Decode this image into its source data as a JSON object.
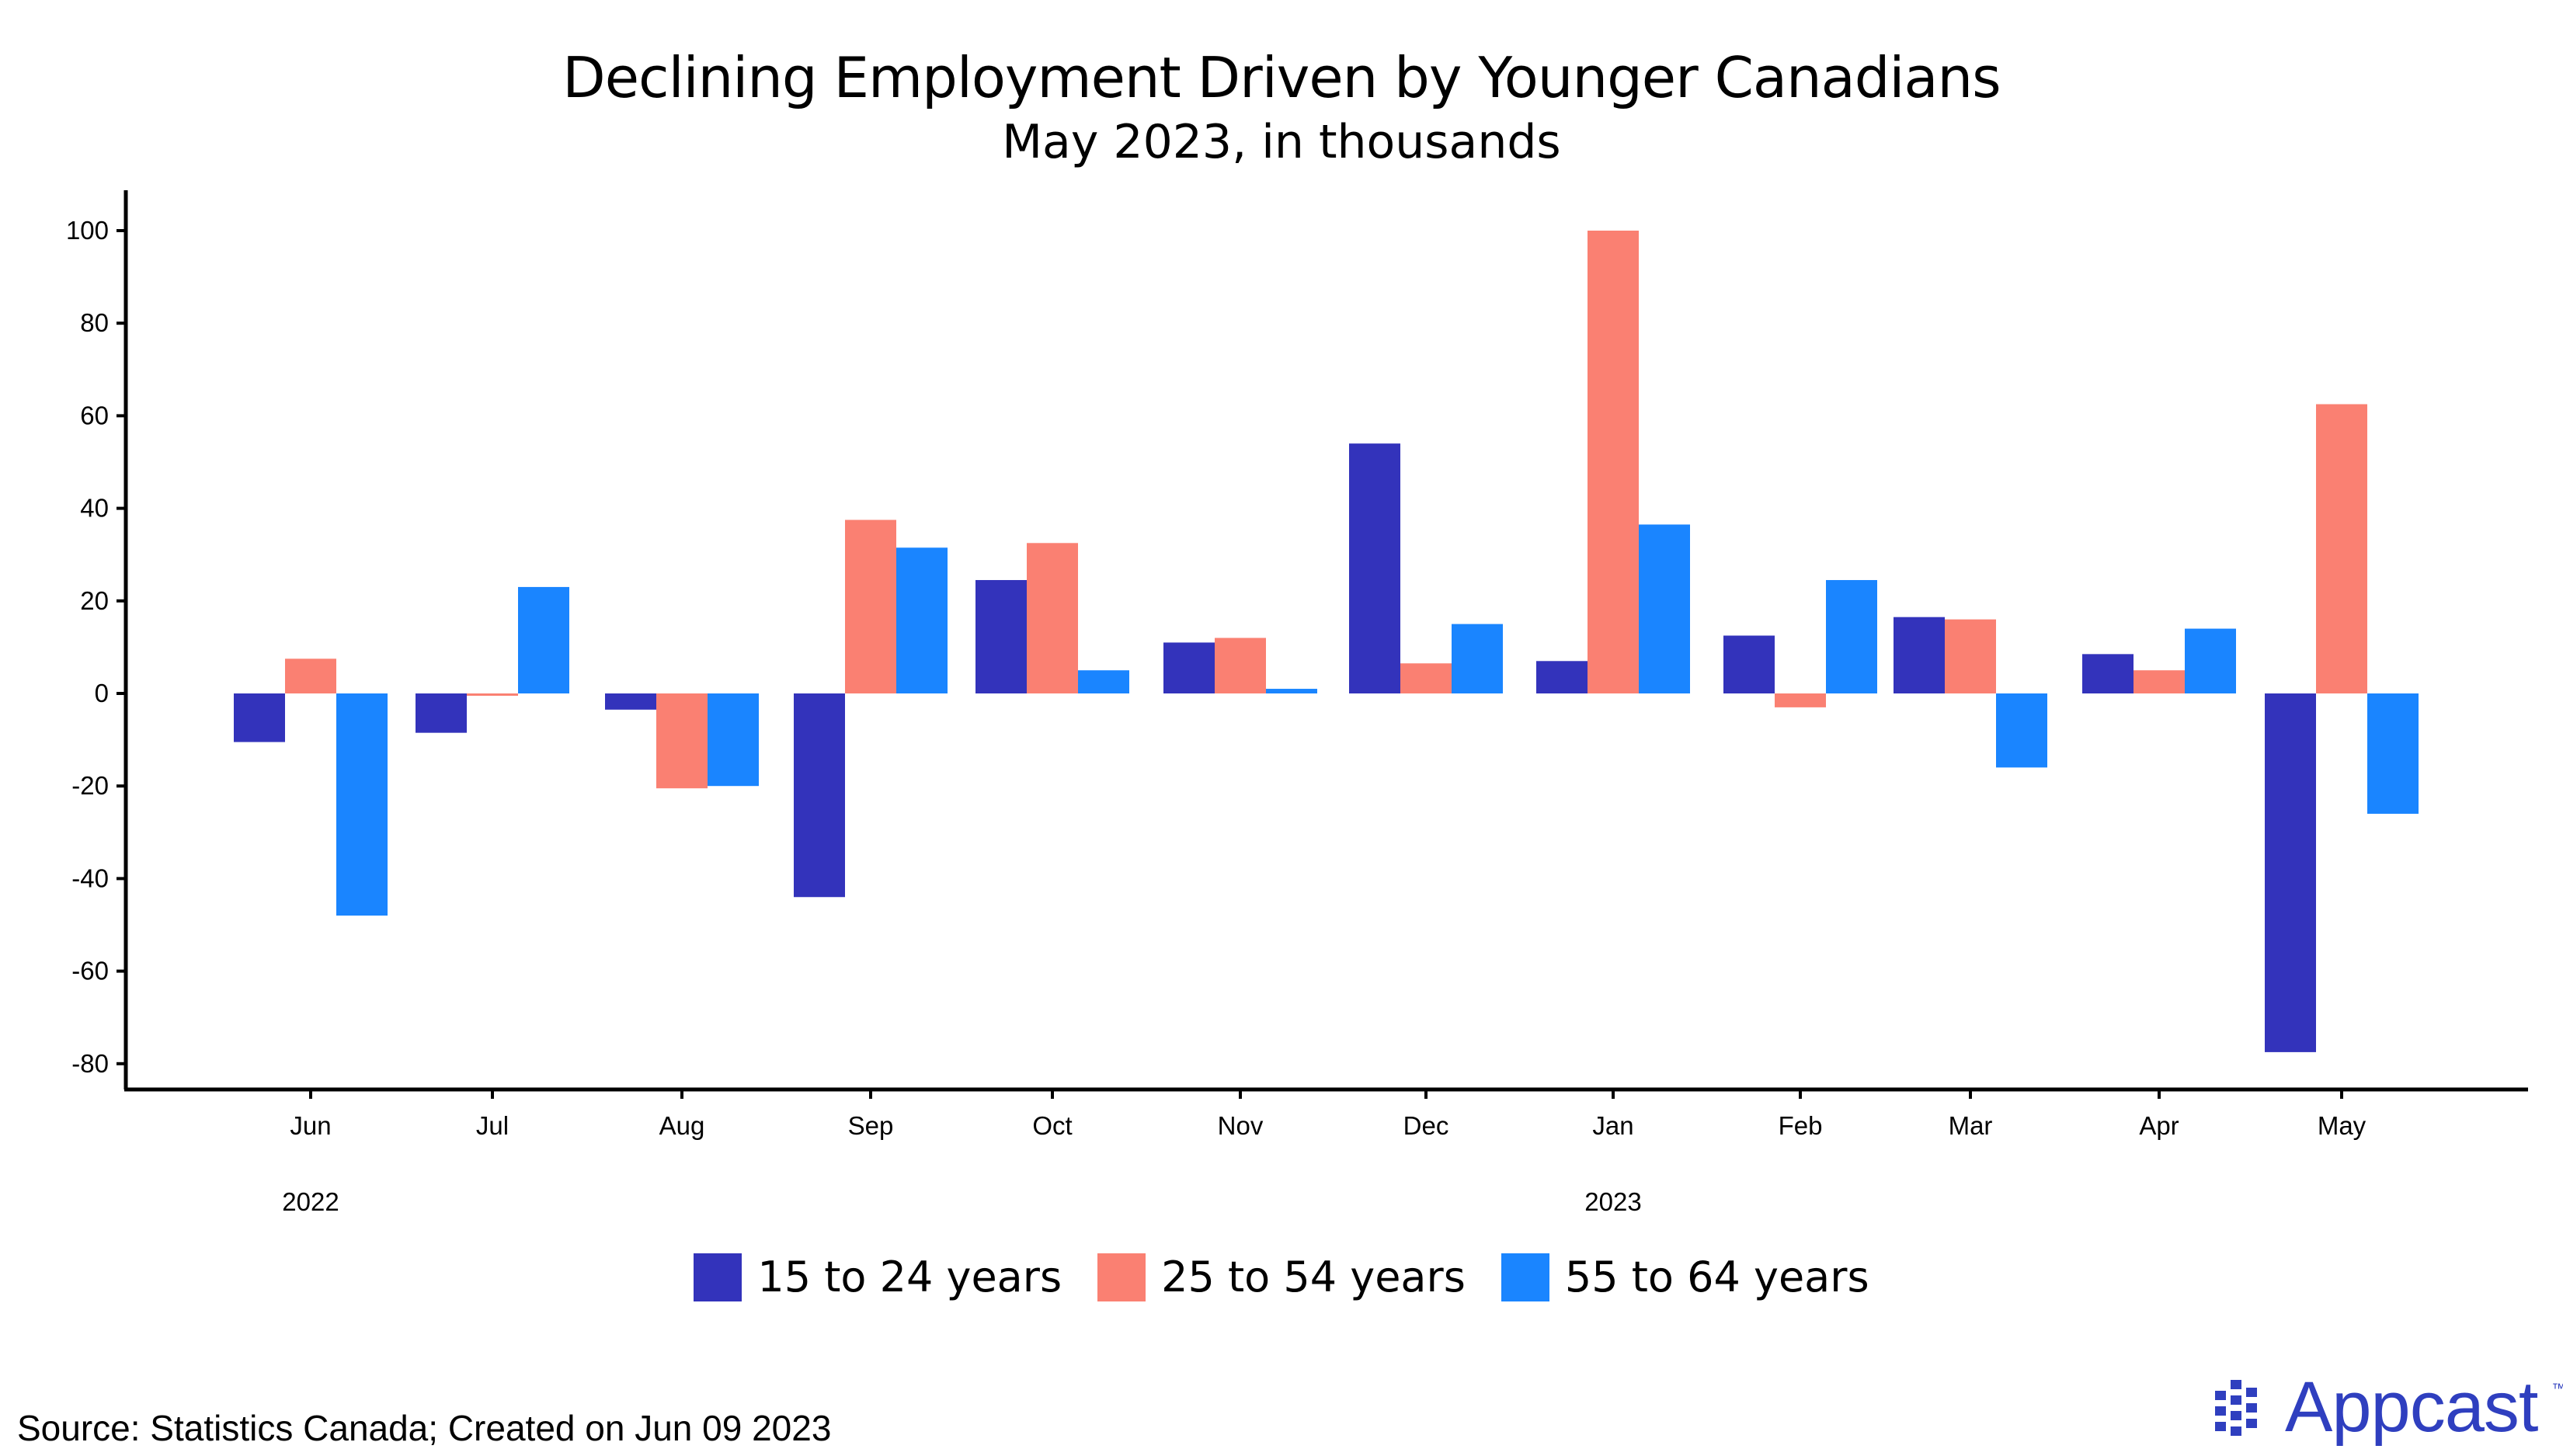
{
  "chart_data": {
    "type": "bar",
    "title": "Declining Employment Driven by Younger Canadians",
    "subtitle": "May 2023, in thousands",
    "categories": [
      "Jun",
      "Jul",
      "Aug",
      "Sep",
      "Oct",
      "Nov",
      "Dec",
      "Jan",
      "Feb",
      "Mar",
      "Apr",
      "May"
    ],
    "year_labels": [
      {
        "label": "2022",
        "category": "Jun"
      },
      {
        "label": "2023",
        "category": "Jan"
      }
    ],
    "series": [
      {
        "name": "15 to 24 years",
        "color": "#3333bb",
        "values": [
          -10.5,
          -8.5,
          -3.5,
          -44,
          24.5,
          11,
          54,
          7,
          12.5,
          16.5,
          8.5,
          -77.5
        ]
      },
      {
        "name": "25 to 54 years",
        "color": "#fa8072",
        "values": [
          7.5,
          -0.5,
          -20.5,
          37.5,
          32.5,
          12,
          6.5,
          100,
          -3,
          16,
          5,
          62.5
        ]
      },
      {
        "name": "55 to 64 years",
        "color": "#1a85ff",
        "values": [
          -48,
          23,
          -20,
          31.5,
          5,
          1,
          15,
          36.5,
          24.5,
          -16,
          14,
          -26
        ]
      }
    ],
    "y_ticks": [
      100,
      80,
      60,
      40,
      20,
      0,
      -20,
      -40,
      -60,
      -80
    ],
    "ylim": [
      -86,
      105
    ],
    "xlabel": "",
    "ylabel": "",
    "grid": false,
    "legend_position": "bottom"
  },
  "source": "Source: Statistics Canada; Created on Jun 09 2023",
  "logo": {
    "text": "Appcast",
    "trademark": "™"
  }
}
